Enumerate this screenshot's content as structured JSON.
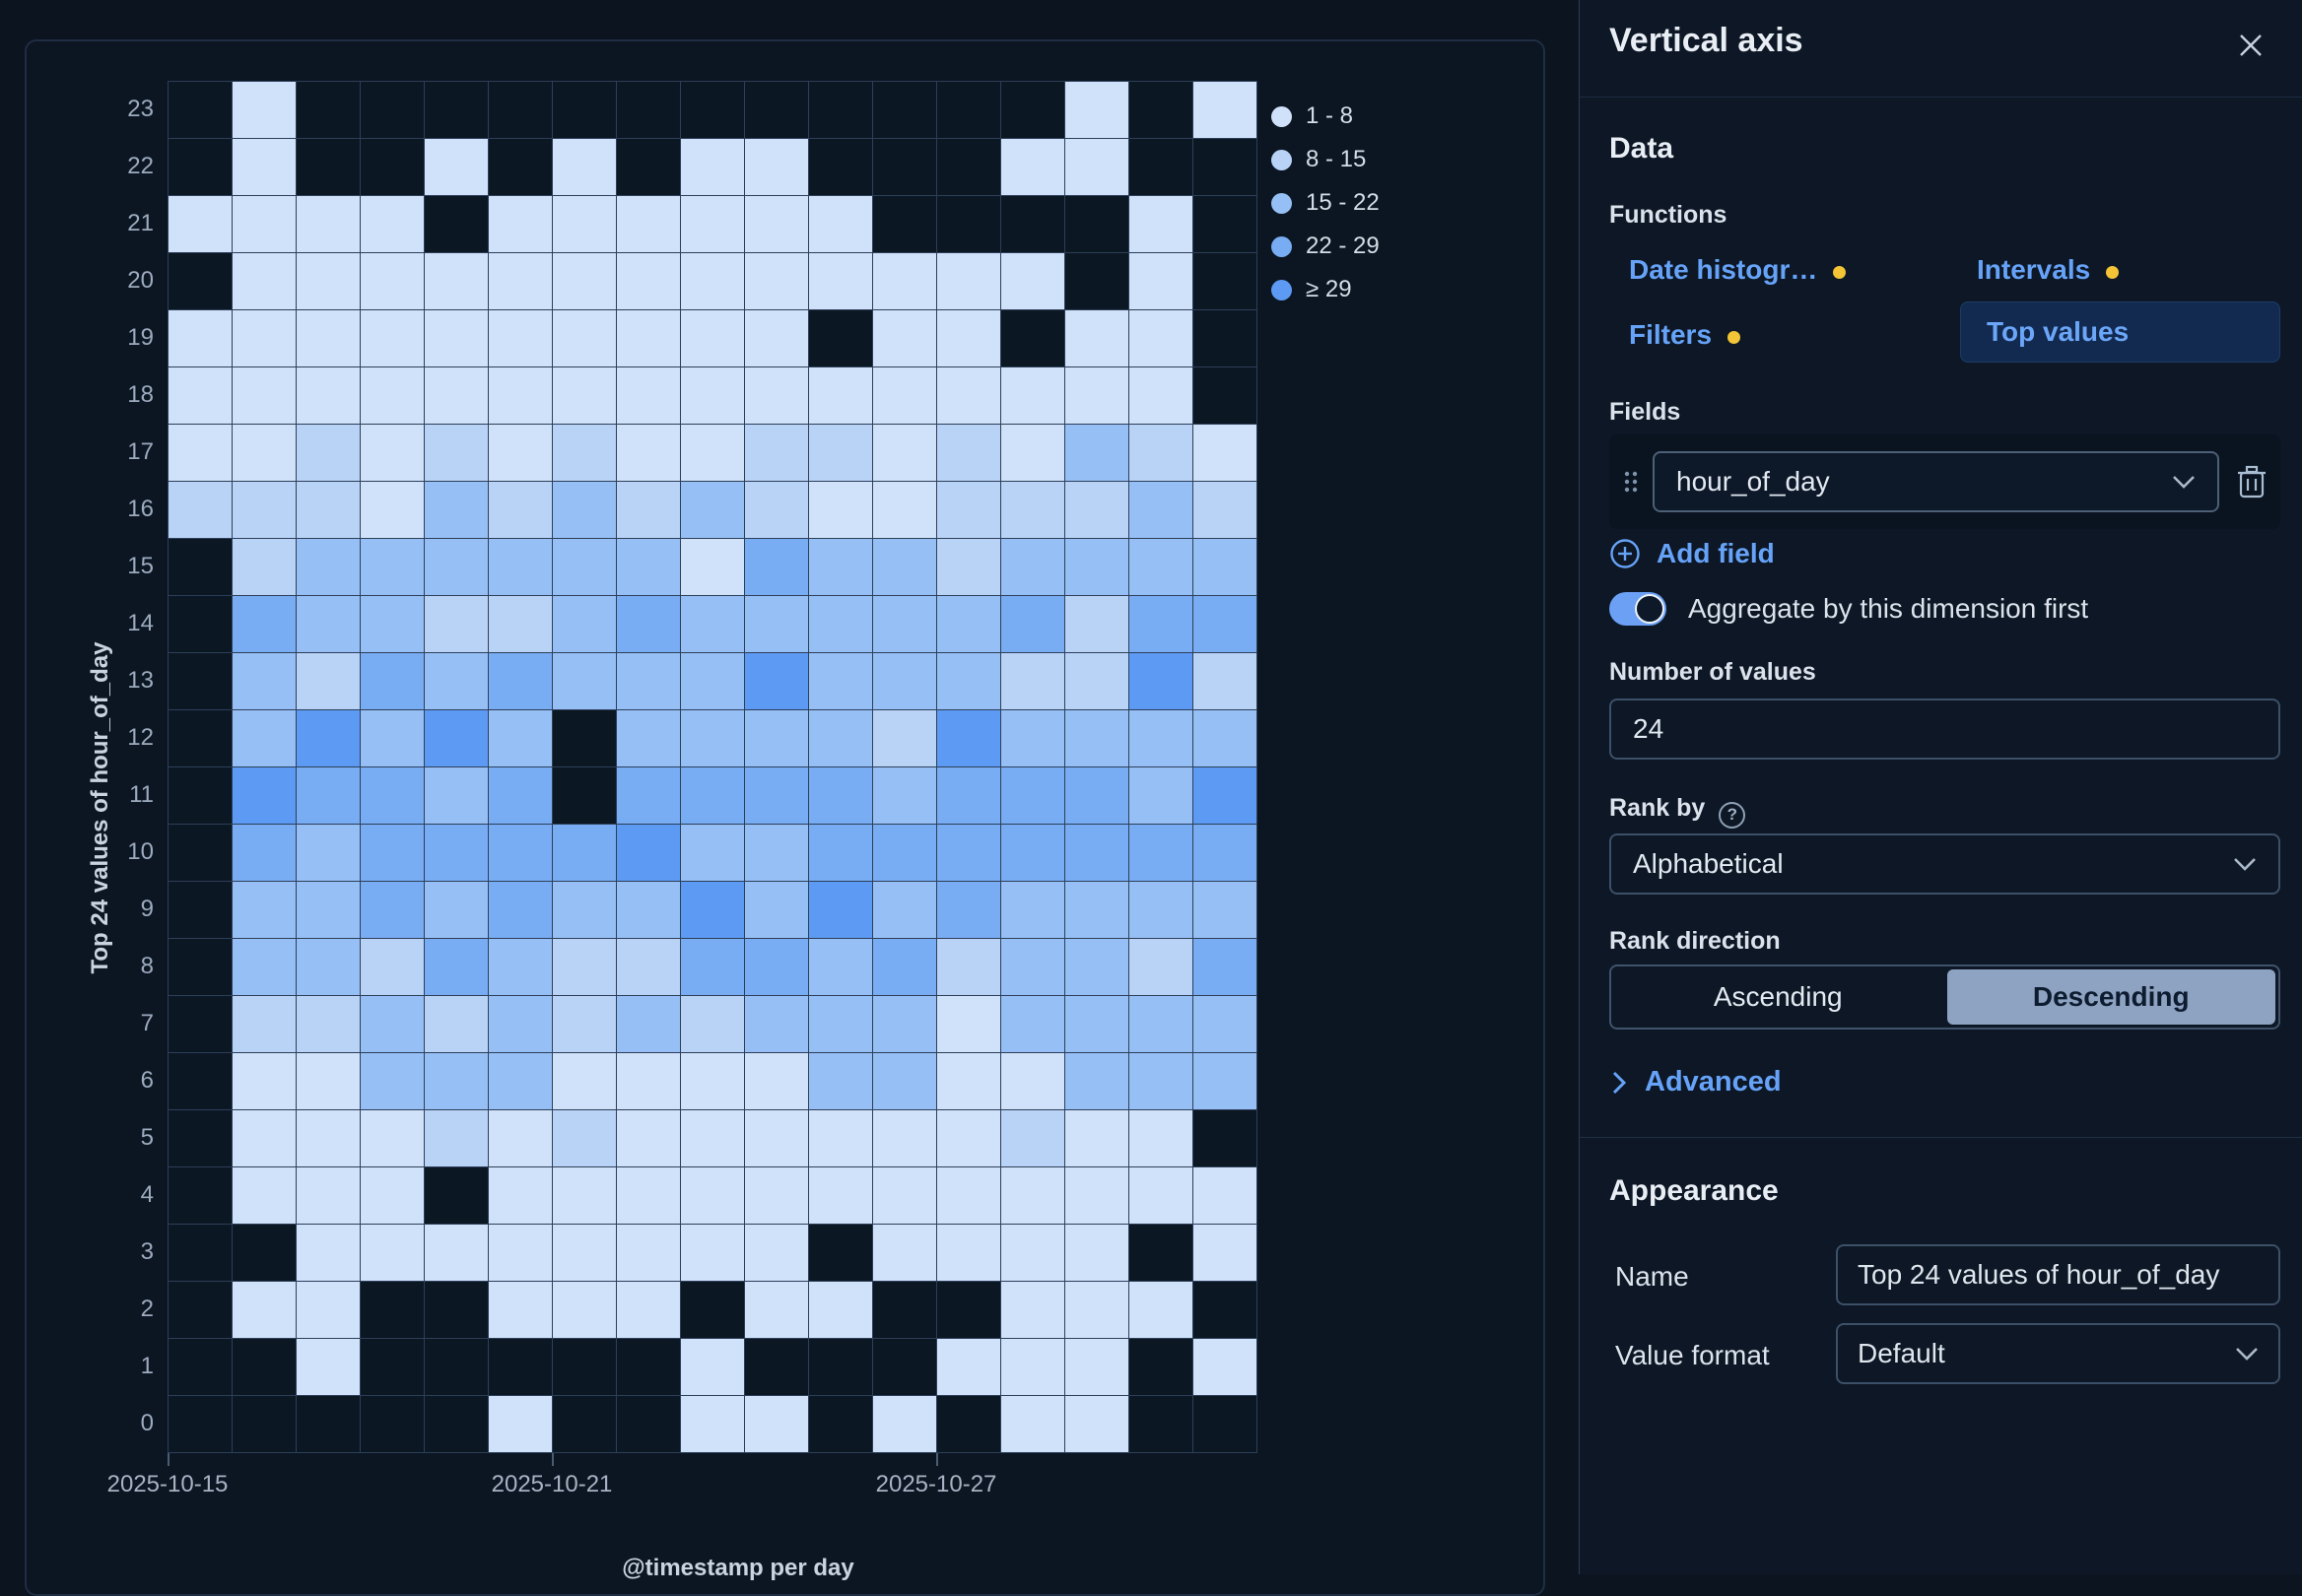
{
  "chart_data": {
    "type": "heatmap",
    "x_label": "@timestamp per day",
    "y_label": "Top 24 values of hour_of_day",
    "x_categories": [
      "2025-10-15",
      "2025-10-16",
      "2025-10-17",
      "2025-10-18",
      "2025-10-19",
      "2025-10-20",
      "2025-10-21",
      "2025-10-22",
      "2025-10-23",
      "2025-10-24",
      "2025-10-25",
      "2025-10-26",
      "2025-10-27",
      "2025-10-28",
      "2025-10-29",
      "2025-10-30",
      "2025-10-31"
    ],
    "y_categories": [
      "23",
      "22",
      "21",
      "20",
      "19",
      "18",
      "17",
      "16",
      "15",
      "14",
      "13",
      "12",
      "11",
      "10",
      "9",
      "8",
      "7",
      "6",
      "5",
      "4",
      "3",
      "2",
      "1",
      "0"
    ],
    "x_ticks": [
      {
        "label": "2025-10-15",
        "col": 0
      },
      {
        "label": "2025-10-21",
        "col": 6
      },
      {
        "label": "2025-10-27",
        "col": 12
      }
    ],
    "legend_bins": [
      {
        "label": "1 - 8",
        "color": "#d0e2fa"
      },
      {
        "label": "8 - 15",
        "color": "#b9d3f7"
      },
      {
        "label": "15 - 22",
        "color": "#96c0f5"
      },
      {
        "label": "22 - 29",
        "color": "#78acf3"
      },
      {
        "label": "≥ 29",
        "color": "#5c9af3"
      }
    ],
    "levels": [
      "#d0e2fa",
      "#b9d3f7",
      "#96c0f5",
      "#78acf3",
      "#5c9af3"
    ],
    "empty_color": "#0c1724",
    "grid": [
      "01000000000000101",
      "01001010110001100",
      "11110111111000010",
      "01111111111111010",
      "11111111110110110",
      "11111111111111110",
      "11212121122121321",
      "22213232321122232",
      "02333333143323333",
      "04332234333334244",
      "03243433353332252",
      "03535303333253333",
      "05443404444344435",
      "04344445334444444",
      "03343433535343333",
      "03324322443423324",
      "02232323233313333",
      "01133311113311333",
      "01112121111112110",
      "01110111111111111",
      "00111111110111101",
      "01100111011001110",
      "00100000100011101",
      "00000100110101100"
    ]
  },
  "flyout": {
    "title": "Vertical axis",
    "data_heading": "Data",
    "functions_label": "Functions",
    "functions": [
      {
        "label": "Date histogr…"
      },
      {
        "label": "Intervals"
      },
      {
        "label": "Filters"
      },
      {
        "label": "Top values"
      }
    ],
    "fields_label": "Fields",
    "field_value": "hour_of_day",
    "add_field_label": "Add field",
    "aggregate_toggle_label": "Aggregate by this dimension first",
    "number_of_values_label": "Number of values",
    "number_of_values_value": "24",
    "rank_by_label": "Rank by",
    "rank_by_value": "Alphabetical",
    "rank_direction_label": "Rank direction",
    "rank_ascending": "Ascending",
    "rank_descending": "Descending",
    "rank_selected": "Descending",
    "advanced_label": "Advanced",
    "appearance_heading": "Appearance",
    "name_label": "Name",
    "name_value": "Top 24 values of hour_of_day",
    "value_format_label": "Value format",
    "value_format_value": "Default"
  }
}
